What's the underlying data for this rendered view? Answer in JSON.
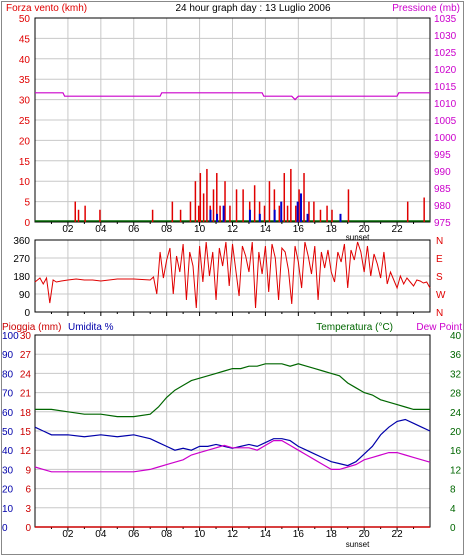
{
  "colors": {
    "wind": "#e00000",
    "gust": "#0000cc",
    "pressure": "#cc00cc",
    "rain": "#cc0000",
    "humidity": "#0000aa",
    "temperature": "#006600",
    "dew": "#cc00cc",
    "grid": "#c8c8c8",
    "axis": "#000000"
  },
  "chart_data": [
    {
      "type": "bar",
      "title": "24 hour graph day : 13 Luglio 2006",
      "left_label": "Forza vento (kmh)",
      "right_label": "Pressione (mb)",
      "x_ticks": [
        "02",
        "04",
        "06",
        "08",
        "10",
        "12",
        "14",
        "16",
        "18",
        "20",
        "22"
      ],
      "x_note": "sunset",
      "ylim_left": [
        0,
        50
      ],
      "y_ticks_left": [
        "0",
        "5",
        "10",
        "15",
        "20",
        "25",
        "30",
        "35",
        "40",
        "45",
        "50"
      ],
      "ylim_right": [
        975,
        1035
      ],
      "y_ticks_right": [
        "975",
        "980",
        "985",
        "990",
        "995",
        "1000",
        "1005",
        "1010",
        "1015",
        "1020",
        "1025",
        "1030",
        "1035"
      ],
      "series": [
        {
          "name": "wind",
          "style": "bars",
          "x": [
            2.4,
            2.6,
            3.0,
            3.9,
            7.1,
            8.3,
            8.8,
            9.4,
            9.7,
            9.9,
            10.0,
            10.2,
            10.4,
            10.6,
            10.8,
            11.0,
            11.2,
            11.5,
            11.8,
            12.2,
            12.6,
            13.0,
            13.3,
            13.6,
            13.9,
            14.2,
            14.5,
            14.8,
            15.1,
            15.3,
            15.5,
            15.8,
            16.0,
            16.3,
            16.6,
            16.9,
            17.3,
            17.7,
            18.0,
            19.0,
            22.6,
            23.6
          ],
          "values": [
            5,
            3,
            4,
            3,
            3,
            5,
            3,
            5,
            10,
            4,
            12,
            7,
            13,
            4,
            8,
            12,
            4,
            10,
            4,
            8,
            8,
            5,
            9,
            5,
            4,
            10,
            8,
            4,
            12,
            4,
            13,
            4,
            8,
            12,
            5,
            5,
            3,
            4,
            3,
            8,
            5,
            6
          ]
        },
        {
          "name": "gust",
          "style": "bars",
          "x": [
            10.6,
            11.0,
            11.4,
            13.0,
            13.6,
            14.5,
            14.9,
            15.9,
            16.1,
            16.5,
            18.5
          ],
          "values": [
            3,
            2,
            4,
            3,
            2,
            3,
            5,
            5,
            7,
            2,
            2
          ]
        },
        {
          "name": "pressure",
          "style": "line",
          "axis": "right",
          "x": [
            0,
            1.7,
            1.8,
            7.6,
            7.7,
            13.8,
            13.9,
            15.6,
            15.8,
            16.0,
            16.2,
            19.0,
            19.1,
            22.0,
            22.1,
            24
          ],
          "values": [
            1013,
            1013,
            1012,
            1012,
            1013,
            1013,
            1012,
            1012,
            1011,
            1012,
            1012,
            1012,
            1012,
            1012,
            1013,
            1013
          ]
        }
      ]
    },
    {
      "type": "line",
      "left_label": "",
      "right_labels": [
        "N",
        "W",
        "S",
        "E",
        "N"
      ],
      "ylim": [
        0,
        360
      ],
      "y_ticks": [
        "0",
        "90",
        "180",
        "270",
        "360"
      ],
      "series": [
        {
          "name": "direction",
          "x": [
            0,
            0.3,
            0.5,
            0.7,
            0.9,
            1.1,
            1.3,
            1.6,
            2.0,
            2.5,
            3.0,
            3.5,
            4.0,
            5.0,
            6.0,
            7.0,
            7.2,
            7.4,
            7.6,
            7.8,
            8.0,
            8.2,
            8.4,
            8.6,
            8.8,
            9.0,
            9.2,
            9.4,
            9.6,
            9.8,
            10.0,
            10.2,
            10.4,
            10.6,
            10.8,
            11.0,
            11.2,
            11.4,
            11.6,
            11.8,
            12.0,
            12.2,
            12.4,
            12.6,
            12.8,
            13.0,
            13.2,
            13.4,
            13.6,
            13.8,
            14.0,
            14.2,
            14.4,
            14.6,
            14.8,
            15.0,
            15.2,
            15.4,
            15.6,
            15.8,
            16.0,
            16.2,
            16.4,
            16.6,
            16.8,
            17.0,
            17.2,
            17.4,
            17.6,
            17.8,
            18.0,
            18.2,
            18.4,
            18.6,
            18.8,
            19.0,
            19.2,
            19.4,
            19.6,
            19.8,
            20.0,
            20.2,
            20.4,
            20.6,
            20.8,
            21.0,
            21.2,
            21.4,
            21.6,
            21.8,
            22.0,
            22.2,
            22.4,
            22.6,
            22.8,
            23.0,
            23.2,
            23.4,
            23.6,
            23.8,
            24.0
          ],
          "values": [
            150,
            170,
            140,
            170,
            45,
            160,
            150,
            155,
            160,
            165,
            160,
            160,
            155,
            165,
            165,
            160,
            175,
            90,
            300,
            170,
            260,
            320,
            90,
            280,
            200,
            340,
            60,
            300,
            230,
            20,
            330,
            150,
            350,
            180,
            300,
            60,
            320,
            230,
            350,
            130,
            340,
            210,
            80,
            330,
            280,
            200,
            350,
            20,
            300,
            190,
            330,
            100,
            340,
            270,
            60,
            320,
            300,
            210,
            40,
            330,
            250,
            120,
            350,
            280,
            190,
            330,
            60,
            300,
            220,
            310,
            200,
            150,
            300,
            250,
            340,
            120,
            310,
            260,
            350,
            300,
            200,
            330,
            180,
            290,
            240,
            170,
            300,
            140,
            200,
            160,
            120,
            180,
            140,
            170,
            150,
            130,
            160,
            155,
            145,
            150,
            120
          ]
        }
      ]
    },
    {
      "type": "line",
      "left_labels": [
        "Pioggia (mm)",
        "Umidita %"
      ],
      "right_labels": [
        "Temperatura (°C)",
        "Dew Point"
      ],
      "y_ticks_rain": [
        "0",
        "3",
        "6",
        "9",
        "12",
        "15",
        "18",
        "21",
        "24",
        "27",
        "30"
      ],
      "ylim_rain": [
        0,
        30
      ],
      "y_ticks_humidity": [
        "0",
        "10",
        "20",
        "30",
        "40",
        "50",
        "60",
        "70",
        "80",
        "90",
        "100"
      ],
      "ylim_humidity": [
        0,
        100
      ],
      "y_ticks_temp": [
        "0",
        "4",
        "8",
        "12",
        "16",
        "20",
        "24",
        "28",
        "32",
        "36",
        "40"
      ],
      "ylim_temp": [
        0,
        40
      ],
      "series": [
        {
          "name": "temperature",
          "axis": "temp",
          "x": [
            0,
            1,
            2,
            3,
            4,
            5,
            6,
            7,
            7.5,
            8,
            8.5,
            9,
            9.5,
            10,
            10.5,
            11,
            11.5,
            12,
            12.5,
            13,
            13.5,
            14,
            14.5,
            15,
            15.5,
            16,
            16.5,
            17,
            17.5,
            18,
            18.5,
            19,
            19.5,
            20,
            20.5,
            21,
            21.5,
            22,
            22.5,
            23,
            23.5,
            24
          ],
          "values": [
            24.5,
            24.5,
            24,
            23.5,
            23.5,
            23,
            23,
            23.5,
            25,
            27,
            28.5,
            29.5,
            30.5,
            31,
            31.5,
            32,
            32.5,
            33,
            33,
            33.5,
            33.5,
            34,
            34,
            34,
            33.5,
            34,
            33.5,
            33,
            32.5,
            32,
            31.5,
            30,
            29,
            28,
            27.5,
            26.5,
            26,
            25.5,
            25,
            24.5,
            24.5,
            24.5
          ]
        },
        {
          "name": "humidity",
          "axis": "humidity",
          "x": [
            0,
            0.5,
            1,
            2,
            3,
            4,
            5,
            6,
            7,
            7.5,
            8,
            8.5,
            9,
            9.5,
            10,
            10.5,
            11,
            11.5,
            12,
            12.5,
            13,
            13.5,
            14,
            14.5,
            15,
            15.5,
            16,
            16.5,
            17,
            17.5,
            18,
            18.5,
            19,
            19.5,
            20,
            20.5,
            21,
            21.5,
            22,
            22.5,
            23,
            23.5,
            24
          ],
          "values": [
            52,
            50,
            48,
            48,
            47,
            48,
            47,
            48,
            46,
            44,
            42,
            40,
            41,
            40,
            42,
            42,
            43,
            42,
            41,
            42,
            43,
            42,
            44,
            46,
            46,
            45,
            42,
            40,
            38,
            36,
            34,
            33,
            32,
            34,
            38,
            42,
            48,
            52,
            55,
            56,
            54,
            52,
            50
          ]
        },
        {
          "name": "dew",
          "axis": "temp",
          "x": [
            0,
            0.5,
            1,
            2,
            3,
            4,
            5,
            6,
            7,
            7.5,
            8,
            8.5,
            9,
            9.5,
            10,
            10.5,
            11,
            11.5,
            12,
            12.5,
            13,
            13.5,
            14,
            14.5,
            15,
            15.5,
            16,
            16.5,
            17,
            17.5,
            18,
            18.5,
            19,
            19.5,
            20,
            20.5,
            21,
            21.5,
            22,
            22.5,
            23,
            23.5,
            24
          ],
          "values": [
            12.5,
            12,
            11.5,
            11.5,
            11.5,
            11.5,
            11.5,
            11.5,
            12,
            12.5,
            13,
            13.5,
            14,
            15,
            15.5,
            16,
            16.5,
            17,
            16.5,
            16.5,
            16.5,
            16,
            17,
            18,
            18,
            17,
            16,
            15,
            14,
            13,
            12,
            12,
            12.5,
            13,
            14,
            14.5,
            15,
            15.5,
            15.5,
            15,
            14.5,
            14,
            13.5
          ]
        },
        {
          "name": "rain",
          "axis": "rain",
          "x": [
            0,
            24
          ],
          "values": [
            0,
            0
          ]
        }
      ],
      "x_ticks": [
        "02",
        "04",
        "06",
        "08",
        "10",
        "12",
        "14",
        "16",
        "18",
        "20",
        "22"
      ],
      "x_note": "sunset"
    }
  ]
}
